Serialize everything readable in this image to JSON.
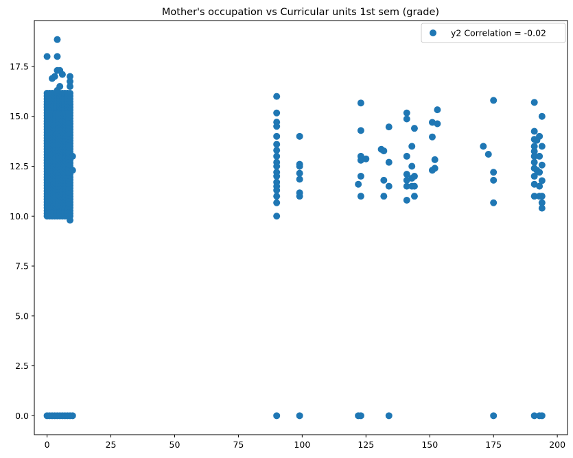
{
  "chart_data": {
    "type": "scatter",
    "title": "Mother's occupation vs Curricular units 1st sem (grade)",
    "xlabel": "",
    "ylabel": "",
    "xlim": [
      -5,
      204
    ],
    "ylim": [
      -0.95,
      19.8
    ],
    "x_ticks": [
      0,
      25,
      50,
      75,
      100,
      125,
      150,
      175,
      200
    ],
    "y_ticks": [
      0.0,
      2.5,
      5.0,
      7.5,
      10.0,
      12.5,
      15.0,
      17.5
    ],
    "x_tick_labels": [
      "0",
      "25",
      "50",
      "75",
      "100",
      "125",
      "150",
      "175",
      "200"
    ],
    "y_tick_labels": [
      "0.0",
      "2.5",
      "5.0",
      "7.5",
      "10.0",
      "12.5",
      "15.0",
      "17.5"
    ],
    "marker_color": "#1f77b4",
    "legend_location": "upper right",
    "series": [
      {
        "name": "y2 Correlation = -0.02",
        "points": [
          [
            0,
            0
          ],
          [
            1,
            0
          ],
          [
            2,
            0
          ],
          [
            3,
            0
          ],
          [
            4,
            0
          ],
          [
            5,
            0
          ],
          [
            6,
            0
          ],
          [
            7,
            0
          ],
          [
            8,
            0
          ],
          [
            9,
            0
          ],
          [
            10,
            0
          ],
          [
            90,
            0
          ],
          [
            99,
            0
          ],
          [
            122,
            0
          ],
          [
            123,
            0
          ],
          [
            134,
            0
          ],
          [
            175,
            0
          ],
          [
            191,
            0
          ],
          [
            193,
            0
          ],
          [
            194,
            0
          ],
          [
            0,
            18.0
          ],
          [
            4,
            18.85
          ],
          [
            4,
            18.0
          ],
          [
            4,
            17.3
          ],
          [
            5,
            17.3
          ],
          [
            6,
            17.1
          ],
          [
            3,
            17.0
          ],
          [
            9,
            17.0
          ],
          [
            2,
            16.9
          ],
          [
            9,
            16.75
          ],
          [
            9,
            16.5
          ],
          [
            5,
            16.5
          ],
          [
            4,
            16.3
          ],
          [
            90,
            16.0
          ],
          [
            90,
            15.17
          ],
          [
            90,
            14.71
          ],
          [
            90,
            14.5
          ],
          [
            90,
            14.0
          ],
          [
            90,
            13.6
          ],
          [
            90,
            13.3
          ],
          [
            90,
            13.0
          ],
          [
            90,
            12.7
          ],
          [
            90,
            12.5
          ],
          [
            90,
            12.2
          ],
          [
            90,
            12.0
          ],
          [
            90,
            11.7
          ],
          [
            90,
            11.5
          ],
          [
            90,
            11.3
          ],
          [
            90,
            11.0
          ],
          [
            90,
            10.67
          ],
          [
            90,
            10.0
          ],
          [
            99,
            14.0
          ],
          [
            99,
            12.6
          ],
          [
            99,
            12.5
          ],
          [
            99,
            12.15
          ],
          [
            99,
            11.85
          ],
          [
            99,
            11.17
          ],
          [
            99,
            11.0
          ],
          [
            122,
            11.6
          ],
          [
            123,
            15.67
          ],
          [
            123,
            14.29
          ],
          [
            123,
            13.0
          ],
          [
            123,
            12.8
          ],
          [
            123,
            12.0
          ],
          [
            123,
            11.0
          ],
          [
            125,
            12.87
          ],
          [
            131,
            13.35
          ],
          [
            132,
            13.27
          ],
          [
            132,
            11.0
          ],
          [
            132,
            11.8
          ],
          [
            134,
            14.47
          ],
          [
            134,
            12.7
          ],
          [
            134,
            11.5
          ],
          [
            141,
            15.17
          ],
          [
            141,
            14.87
          ],
          [
            141,
            13.0
          ],
          [
            141,
            12.1
          ],
          [
            141,
            11.8
          ],
          [
            141,
            11.5
          ],
          [
            141,
            10.8
          ],
          [
            143,
            13.5
          ],
          [
            143,
            12.5
          ],
          [
            143,
            11.9
          ],
          [
            143,
            11.5
          ],
          [
            144,
            14.4
          ],
          [
            144,
            12.0
          ],
          [
            144,
            11.5
          ],
          [
            144,
            11.0
          ],
          [
            151,
            14.7
          ],
          [
            151,
            13.97
          ],
          [
            151,
            12.3
          ],
          [
            152,
            12.83
          ],
          [
            152,
            12.4
          ],
          [
            153,
            15.33
          ],
          [
            153,
            14.63
          ],
          [
            171,
            13.5
          ],
          [
            173,
            13.1
          ],
          [
            175,
            15.8
          ],
          [
            175,
            12.2
          ],
          [
            175,
            11.8
          ],
          [
            175,
            10.67
          ],
          [
            191,
            15.7
          ],
          [
            191,
            14.25
          ],
          [
            191,
            13.85
          ],
          [
            191,
            13.5
          ],
          [
            191,
            13.25
          ],
          [
            191,
            13.0
          ],
          [
            191,
            12.7
          ],
          [
            191,
            12.4
          ],
          [
            191,
            12.0
          ],
          [
            191,
            11.6
          ],
          [
            191,
            11.0
          ],
          [
            192,
            13.8
          ],
          [
            192,
            12.3
          ],
          [
            193,
            14.0
          ],
          [
            193,
            13.0
          ],
          [
            193,
            12.2
          ],
          [
            193,
            11.5
          ],
          [
            193,
            11.0
          ],
          [
            194,
            15.0
          ],
          [
            194,
            13.5
          ],
          [
            194,
            12.56
          ],
          [
            194,
            11.78
          ],
          [
            194,
            11.0
          ],
          [
            194,
            10.67
          ],
          [
            194,
            10.4
          ],
          [
            10,
            13.0
          ],
          [
            10,
            12.3
          ],
          [
            9,
            9.8
          ]
        ],
        "dense_clusters": [
          {
            "x_values": [
              0,
              1,
              2,
              3,
              4,
              5,
              6,
              7,
              8,
              9
            ],
            "y_range": [
              10.0,
              16.2
            ],
            "spacing": 0.14
          },
          {
            "x_values": [
              0.5,
              1.5,
              2.5,
              3.5,
              4.5,
              5.5,
              6.5,
              7.5,
              8.5
            ],
            "y_range": [
              10.5,
              15.2
            ],
            "spacing": 0.14
          }
        ]
      }
    ]
  }
}
